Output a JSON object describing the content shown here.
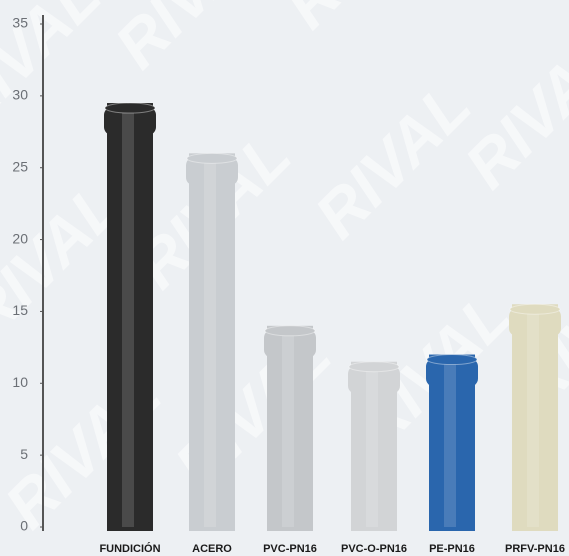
{
  "chart_data": {
    "type": "bar",
    "watermark": "RIVAL",
    "categories": [
      "FUNDICIÓN",
      "ACERO",
      "PVC-PN16",
      "PVC-O-PN16",
      "PE-PN16",
      "PRFV-PN16"
    ],
    "values": [
      29.5,
      26,
      14,
      11.5,
      12,
      15.5
    ],
    "colors": [
      "#2b2b2b",
      "#c9cdd1",
      "#c4c7ca",
      "#d2d4d6",
      "#2a66ad",
      "#dfdbbf"
    ],
    "ylim": [
      0,
      35
    ],
    "yticks": [
      0,
      5,
      10,
      15,
      20,
      25,
      30,
      35
    ]
  }
}
